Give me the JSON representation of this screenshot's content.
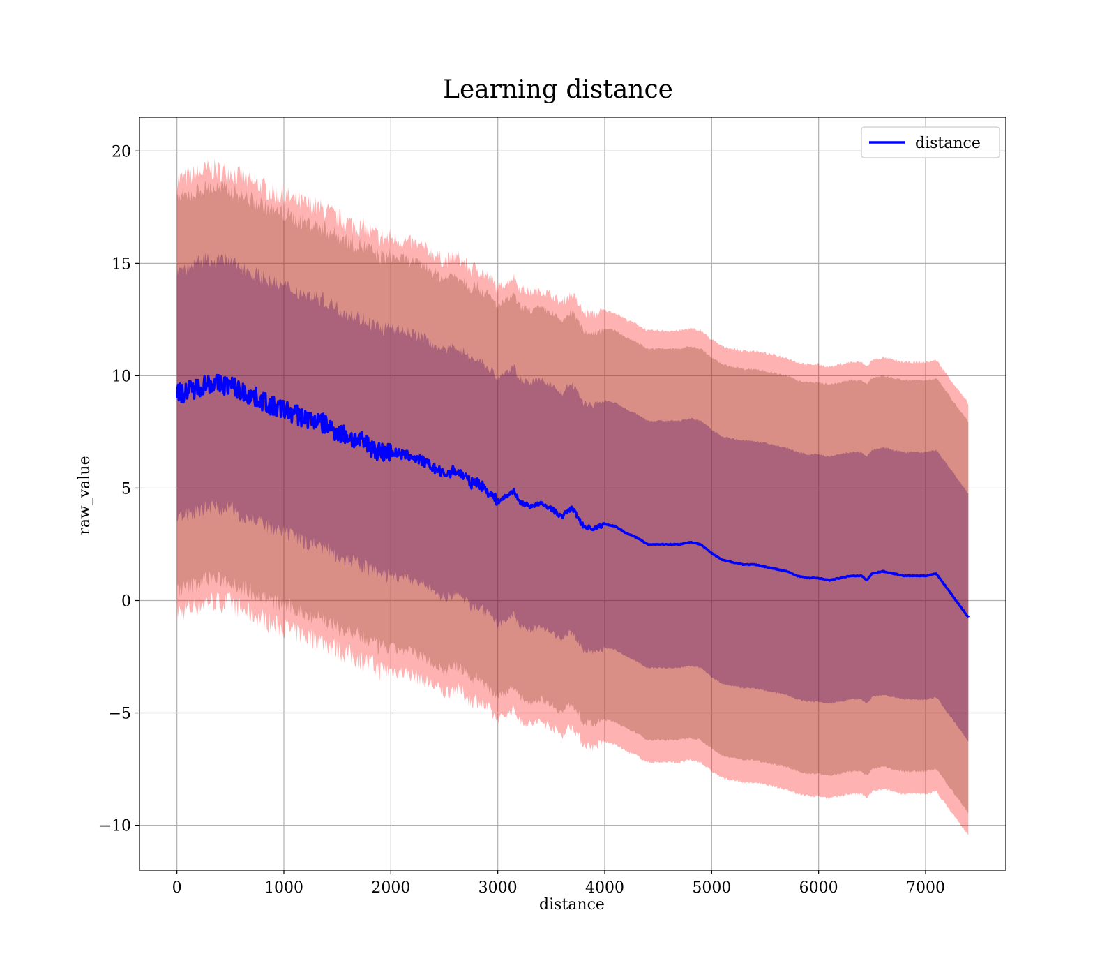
{
  "chart_data": {
    "type": "line",
    "title": "Learning distance",
    "xlabel": "distance",
    "ylabel": "raw_value",
    "xlim": [
      -350,
      7750
    ],
    "ylim": [
      -12,
      21.5
    ],
    "xticks": [
      0,
      1000,
      2000,
      3000,
      4000,
      5000,
      6000,
      7000
    ],
    "yticks": [
      -10,
      -5,
      0,
      5,
      10,
      15,
      20
    ],
    "xtick_labels": [
      "0",
      "1000",
      "2000",
      "3000",
      "4000",
      "5000",
      "6000",
      "7000"
    ],
    "ytick_labels": [
      "−10",
      "−5",
      "0",
      "5",
      "10",
      "15",
      "20"
    ],
    "grid": true,
    "legend": {
      "placement": "upper right",
      "entries": [
        "distance"
      ]
    },
    "series": [
      {
        "name": "distance",
        "color": "#0000ff",
        "x": [
          0,
          100,
          200,
          300,
          400,
          500,
          600,
          700,
          800,
          900,
          1000,
          1100,
          1200,
          1300,
          1400,
          1500,
          1600,
          1700,
          1800,
          1900,
          2000,
          2100,
          2200,
          2300,
          2400,
          2500,
          2600,
          2700,
          2750,
          2800,
          2900,
          3000,
          3100,
          3150,
          3200,
          3300,
          3400,
          3500,
          3600,
          3650,
          3700,
          3800,
          3900,
          4000,
          4100,
          4200,
          4300,
          4400,
          4500,
          4600,
          4700,
          4800,
          4900,
          5000,
          5100,
          5200,
          5300,
          5400,
          5500,
          5600,
          5700,
          5800,
          5900,
          6000,
          6100,
          6200,
          6300,
          6400,
          6450,
          6500,
          6600,
          6700,
          6800,
          6900,
          7000,
          7100,
          7400
        ],
        "y": [
          9.2,
          9.3,
          9.5,
          9.7,
          9.6,
          9.6,
          9.3,
          9.1,
          8.9,
          8.6,
          8.5,
          8.3,
          8.1,
          8.0,
          7.8,
          7.5,
          7.3,
          7.1,
          6.9,
          6.6,
          6.6,
          6.5,
          6.4,
          6.2,
          5.9,
          5.6,
          5.8,
          5.5,
          5.2,
          5.3,
          4.9,
          4.4,
          4.7,
          4.9,
          4.4,
          4.2,
          4.3,
          4.1,
          3.7,
          4.0,
          4.1,
          3.3,
          3.2,
          3.4,
          3.3,
          3.0,
          2.8,
          2.5,
          2.5,
          2.5,
          2.5,
          2.6,
          2.5,
          2.1,
          1.8,
          1.7,
          1.6,
          1.6,
          1.5,
          1.4,
          1.3,
          1.1,
          1.0,
          1.0,
          0.9,
          1.0,
          1.1,
          1.1,
          0.9,
          1.2,
          1.3,
          1.2,
          1.1,
          1.1,
          1.1,
          1.2,
          -0.75
        ]
      }
    ],
    "bands": [
      {
        "color": "#ff0000",
        "opacity": 0.3,
        "offset_upper": 9.5,
        "offset_lower": -9.7,
        "noise": 0.5
      },
      {
        "color": "#804020",
        "opacity": 0.3,
        "offset_upper": 8.7,
        "offset_lower": -8.7,
        "noise": 0.4
      },
      {
        "color": "#400060",
        "opacity": 0.3,
        "offset_upper": 5.5,
        "offset_lower": -5.5,
        "noise": 0.35
      }
    ]
  }
}
